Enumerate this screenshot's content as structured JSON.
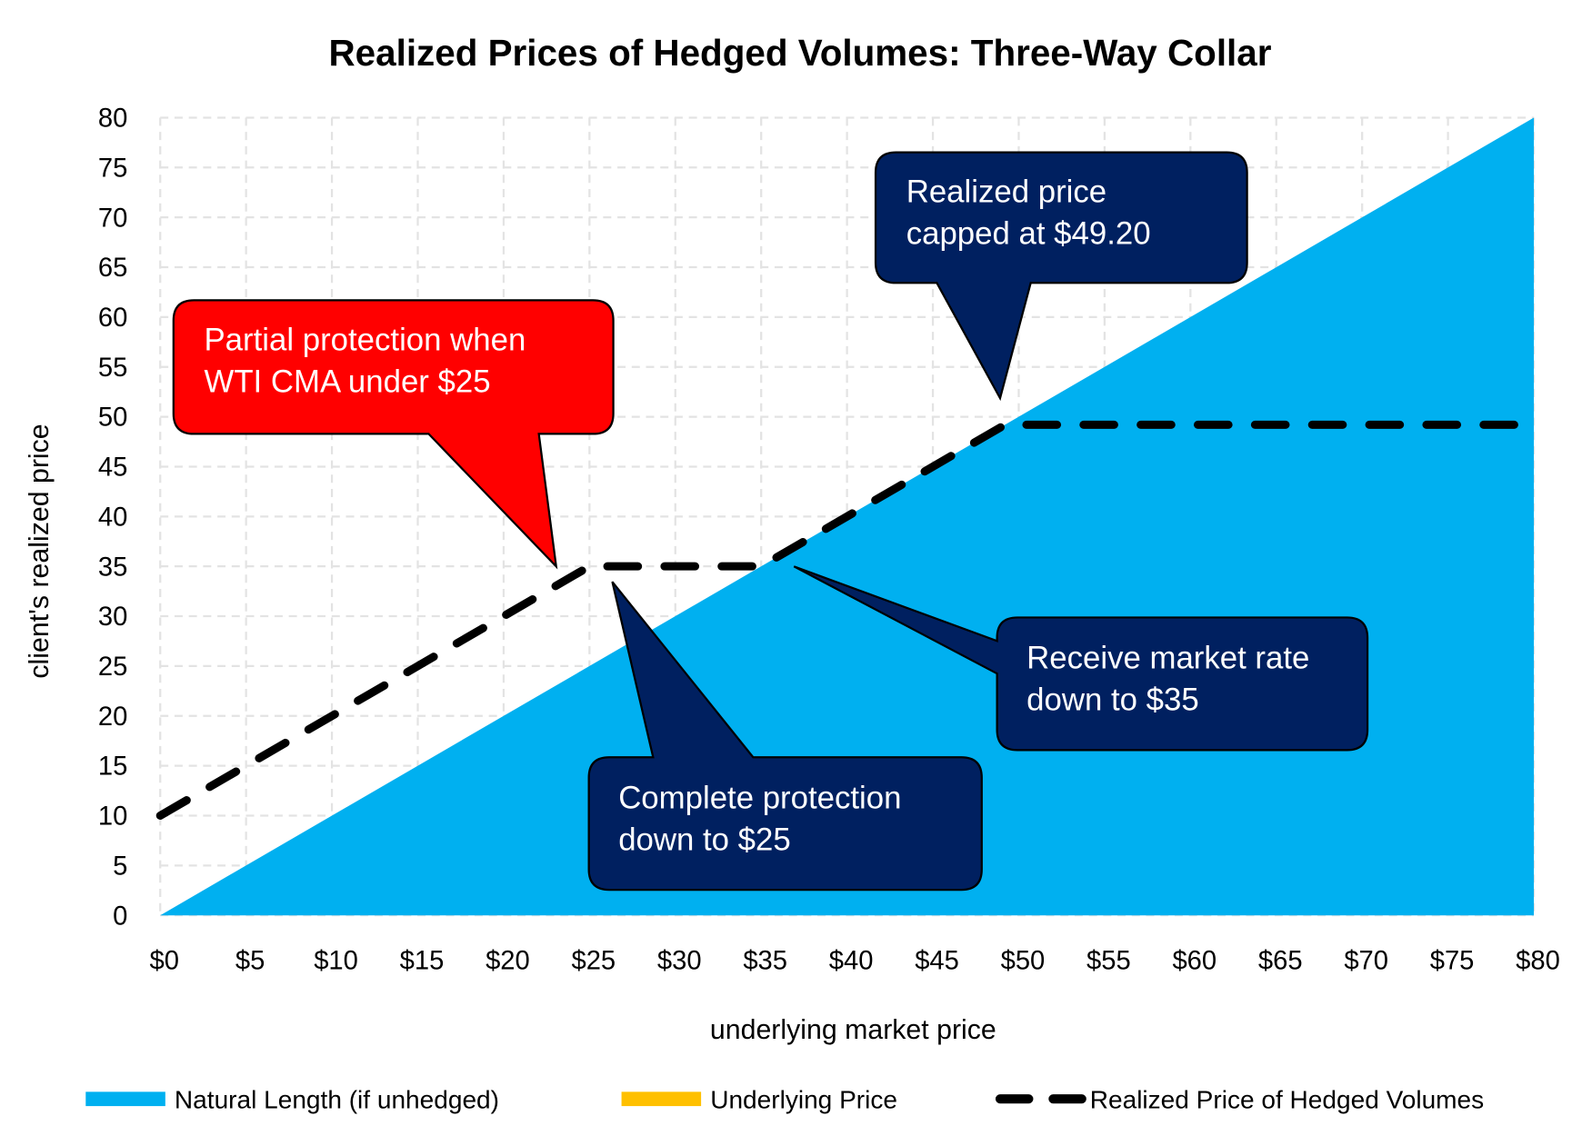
{
  "chart_data": {
    "type": "area",
    "title": "Realized Prices of Hedged Volumes: Three-Way Collar",
    "xlabel": "underlying market price",
    "ylabel": "client's realized price",
    "xlim": [
      0,
      80
    ],
    "ylim": [
      0,
      80
    ],
    "grid": true,
    "x_ticks": [
      "$0",
      "$5",
      "$10",
      "$15",
      "$20",
      "$25",
      "$30",
      "$35",
      "$40",
      "$45",
      "$50",
      "$55",
      "$60",
      "$65",
      "$70",
      "$75",
      "$80"
    ],
    "y_ticks": [
      "0",
      "5",
      "10",
      "15",
      "20",
      "25",
      "30",
      "35",
      "40",
      "45",
      "50",
      "55",
      "60",
      "65",
      "70",
      "75",
      "80"
    ],
    "legend_position": "bottom",
    "series": [
      {
        "name": "Natural Length (if unhedged)",
        "type": "area",
        "color": "#00b0f0",
        "x": [
          0,
          80
        ],
        "y": [
          0,
          80
        ]
      },
      {
        "name": "Underlying Price",
        "type": "line",
        "color": "#ffc000",
        "x": [],
        "y": []
      },
      {
        "name": "Realized Price of Hedged Volumes",
        "type": "dashed-line",
        "color": "#000000",
        "x": [
          0,
          25,
          35,
          49.2,
          80
        ],
        "y": [
          10,
          35,
          35,
          49.2,
          49.2
        ]
      }
    ],
    "annotations": [
      {
        "lines": [
          "Realized price",
          "capped at $49.20"
        ],
        "color": "#002060"
      },
      {
        "lines": [
          "Partial protection when",
          "WTI CMA under $25"
        ],
        "color": "#ff0000"
      },
      {
        "lines": [
          "Receive market rate",
          "down to $35"
        ],
        "color": "#002060"
      },
      {
        "lines": [
          "Complete protection",
          "down to $25"
        ],
        "color": "#002060"
      }
    ]
  }
}
